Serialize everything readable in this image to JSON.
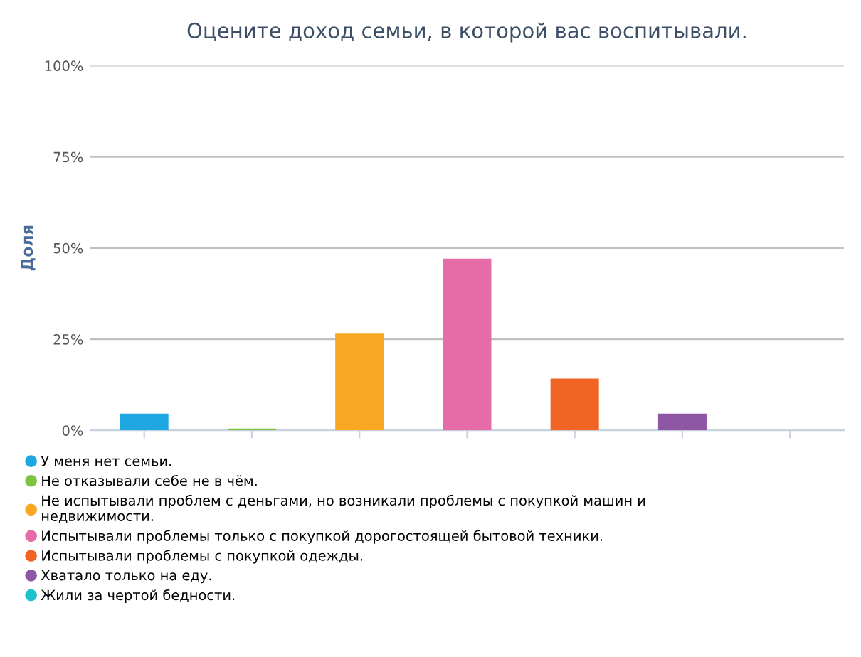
{
  "chart_data": {
    "type": "bar",
    "title": "Оцените доход семьи, в которой вас воспитывали.",
    "ylabel": "Доля",
    "categories": [
      null,
      null,
      null,
      null,
      null,
      null,
      null
    ],
    "series": [
      {
        "name": "У меня нет семьи.",
        "color": "#1ea7e1",
        "values": [
          4.6,
          null,
          null,
          null,
          null,
          null,
          null
        ]
      },
      {
        "name": "Не отказывали себе не в чём.",
        "color": "#7dc242",
        "values": [
          null,
          0.5,
          null,
          null,
          null,
          null,
          null
        ]
      },
      {
        "name": "Не испытывали проблем с деньгами, но возникали проблемы с покупкой машин и недвижимости.",
        "color": "#f9a825",
        "values": [
          null,
          null,
          26.5,
          null,
          null,
          null,
          null
        ]
      },
      {
        "name": "Испытывали проблемы только с покупкой дорогостоящей бытовой техники.",
        "color": "#e66ca8",
        "values": [
          null,
          null,
          null,
          47.1,
          null,
          null,
          null
        ]
      },
      {
        "name": "Испытывали проблемы с покупкой одежды.",
        "color": "#f06524",
        "values": [
          null,
          null,
          null,
          null,
          14.2,
          null,
          null
        ]
      },
      {
        "name": "Хватало только на еду.",
        "color": "#8e57a4",
        "values": [
          null,
          null,
          null,
          null,
          null,
          4.6,
          null
        ]
      },
      {
        "name": "Жили за чертой бедности.",
        "color": "#1fc1cd",
        "values": [
          null,
          null,
          null,
          null,
          null,
          null,
          0
        ]
      }
    ],
    "ylim": [
      0,
      100
    ],
    "yticks": [
      {
        "value": 0,
        "label": "0%"
      },
      {
        "value": 25,
        "label": "25%"
      },
      {
        "value": 50,
        "label": "50%"
      },
      {
        "value": 75,
        "label": "75%"
      },
      {
        "value": 100,
        "label": "100%"
      }
    ],
    "grid": "y",
    "legend": "bottom",
    "marker": "circle",
    "tick_labels": "y"
  }
}
